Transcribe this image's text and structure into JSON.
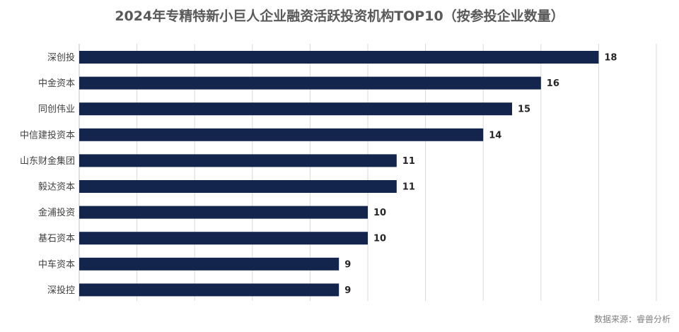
{
  "title": "2024年专精特新小巨人企业融资活跃投资机构TOP10（按参投企业数量）",
  "source": "数据来源：睿兽分析",
  "colors": {
    "bar": "#13254d",
    "grid": "#d9d9d9",
    "axis": "#bfbfbf"
  },
  "chart_data": {
    "type": "bar",
    "orientation": "horizontal",
    "title": "2024年专精特新小巨人企业融资活跃投资机构TOP10（按参投企业数量）",
    "categories": [
      "深创投",
      "中金资本",
      "同创伟业",
      "中信建投资本",
      "山东财金集团",
      "毅达资本",
      "金浦投资",
      "基石资本",
      "中车资本",
      "深投控"
    ],
    "values": [
      18,
      16,
      15,
      14,
      11,
      11,
      10,
      10,
      9,
      9
    ],
    "xlim": [
      0,
      20
    ],
    "grid": true,
    "data_labels": true,
    "legend": "none"
  }
}
